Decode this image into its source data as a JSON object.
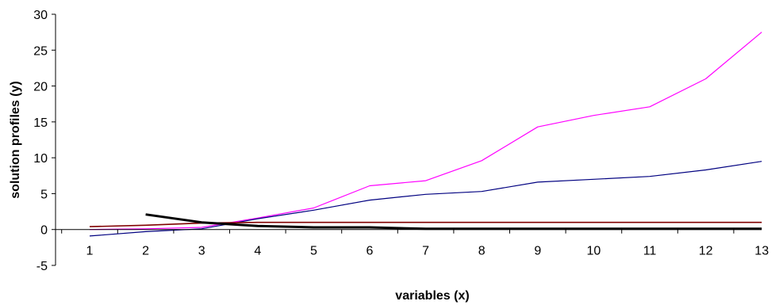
{
  "chart_data": {
    "type": "line",
    "xlabel": "variables (x)",
    "ylabel": "solution profiles (y)",
    "x": [
      1,
      2,
      3,
      4,
      5,
      6,
      7,
      8,
      9,
      10,
      11,
      12,
      13
    ],
    "ylim": [
      -5,
      30
    ],
    "yticks": [
      -5,
      0,
      5,
      10,
      15,
      20,
      25,
      30
    ],
    "grid": false,
    "legend": "none",
    "series": [
      {
        "color": "#ff00ff",
        "values": [
          0,
          0.1,
          0.3,
          1.6,
          3.0,
          6.1,
          6.8,
          9.6,
          14.3,
          15.9,
          17.1,
          21.0,
          27.5
        ]
      },
      {
        "color": "#000080",
        "values": [
          -0.9,
          -0.3,
          0.1,
          1.5,
          2.7,
          4.1,
          4.9,
          5.3,
          6.6,
          7.0,
          7.4,
          8.3,
          9.5
        ]
      },
      {
        "color": "#800000",
        "values": [
          0.4,
          0.6,
          0.9,
          1.0,
          1.0,
          1.0,
          1.0,
          1.0,
          1.0,
          1.0,
          1.0,
          1.0,
          1.0
        ]
      },
      {
        "color": "#000000",
        "values": [
          null,
          2.1,
          1.0,
          0.5,
          0.3,
          0.3,
          0.1,
          0.1,
          0.1,
          0.1,
          0.1,
          0.1,
          0.1
        ]
      }
    ]
  }
}
